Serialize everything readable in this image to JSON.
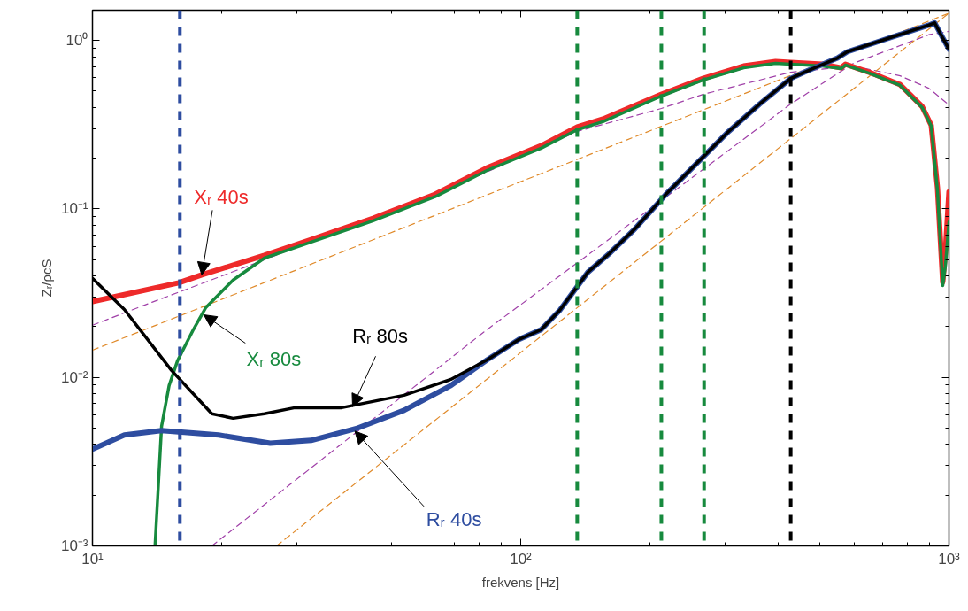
{
  "chart_data": {
    "type": "line",
    "xlabel": "frekvens [Hz]",
    "ylabel": "Zᵣ/ρcS",
    "log": "xy",
    "grid": false,
    "xlim": [
      10,
      1000
    ],
    "ylim": [
      0.001,
      1.51
    ],
    "xticks": [
      {
        "value": 10,
        "label": "10¹"
      },
      {
        "value": 100,
        "label": "10²"
      },
      {
        "value": 1000,
        "label": "10³"
      }
    ],
    "yticks": [
      {
        "value": 0.001,
        "label": "10⁻³"
      },
      {
        "value": 0.01,
        "label": "10⁻²"
      },
      {
        "value": 0.1,
        "label": "10⁻¹"
      },
      {
        "value": 1,
        "label": "10⁰"
      }
    ],
    "series": [
      {
        "color": "#a040a8",
        "line_style": "dashed",
        "x": [
          10,
          13.1,
          24.3,
          79.6,
          135.5,
          213,
          266.5,
          427,
          598,
          769,
          897,
          1000
        ],
        "values": [
          0.0204,
          0.0266,
          0.0481,
          0.157,
          0.288,
          0.394,
          0.478,
          0.647,
          0.704,
          0.616,
          0.52,
          0.414
        ]
      },
      {
        "color": "#a040a8",
        "line_style": "dashed",
        "x": [
          19.0,
          83.4,
          213,
          427,
          598,
          897,
          1000
        ],
        "values": [
          0.001,
          0.0192,
          0.112,
          0.419,
          0.73,
          1.08,
          1.13
        ]
      },
      {
        "color": "#e08a2a",
        "line_style": "dashed",
        "x": [
          10,
          1000
        ],
        "values": [
          0.0145,
          1.45
        ]
      },
      {
        "color": "#e08a2a",
        "line_style": "dashed",
        "x": [
          26.9,
          1000
        ],
        "values": [
          0.001,
          1.45
        ]
      },
      {
        "color": "#ee2a2a",
        "line_style": "solid",
        "x": [
          10,
          15.9,
          18.0,
          25.2,
          32.4,
          45.2,
          63.1,
          83.4,
          111.6,
          135.5,
          155.6,
          213,
          266.5,
          331.6,
          393.6,
          427,
          506,
          560,
          573,
          651,
          769,
          866,
          909,
          940,
          967,
          981,
          1000
        ],
        "values": [
          0.0282,
          0.0364,
          0.0406,
          0.053,
          0.0658,
          0.0879,
          0.122,
          0.175,
          0.237,
          0.306,
          0.341,
          0.478,
          0.594,
          0.704,
          0.748,
          0.739,
          0.722,
          0.687,
          0.722,
          0.647,
          0.546,
          0.404,
          0.313,
          0.133,
          0.0368,
          0.0562,
          0.126
        ]
      },
      {
        "color": "#178a3e",
        "line_style": "solid",
        "x": [
          14.0,
          14.5,
          15.1,
          15.8,
          17.2,
          18.4,
          21.3,
          25.2,
          32.4,
          45.2,
          63.1,
          83.4,
          111.6,
          135.5,
          155.6,
          213,
          266.5,
          331.6,
          393.6,
          427,
          506,
          560,
          573,
          651,
          769,
          866,
          909,
          940,
          967,
          981,
          1000
        ],
        "values": [
          0.001,
          0.00513,
          0.00895,
          0.01256,
          0.0192,
          0.026,
          0.0378,
          0.051,
          0.0635,
          0.0849,
          0.118,
          0.169,
          0.229,
          0.295,
          0.329,
          0.467,
          0.581,
          0.687,
          0.73,
          0.722,
          0.704,
          0.679,
          0.713,
          0.639,
          0.54,
          0.399,
          0.31,
          0.128,
          0.0351,
          0.0458,
          0.0838
        ]
      },
      {
        "color": "#2e4da0",
        "line_style": "solid",
        "x": [
          10,
          11.87,
          14.5,
          19.7,
          26.0,
          32.4,
          41.7,
          53.4,
          68.7,
          83.4,
          99.1,
          111.6,
          123.3,
          143.5,
          160.9,
          184.7,
          218.3,
          266.5,
          305.9,
          331.6,
          361.4,
          427,
          464.5,
          549,
          578.6,
          706,
          896.7,
          926,
          958,
          1000
        ],
        "values": [
          0.00375,
          0.00455,
          0.00483,
          0.00455,
          0.00407,
          0.00423,
          0.00501,
          0.00638,
          0.00895,
          0.0127,
          0.0168,
          0.0192,
          0.025,
          0.0421,
          0.0542,
          0.076,
          0.122,
          0.203,
          0.288,
          0.345,
          0.419,
          0.594,
          0.655,
          0.785,
          0.855,
          1.01,
          1.23,
          1.27,
          1.08,
          0.886
        ]
      },
      {
        "color": "#000000",
        "line_style": "solid",
        "x": [
          10,
          11.87,
          15.3,
          19.0,
          21.3,
          25.2,
          29.7,
          38.2,
          53.4,
          68.7,
          83.4,
          99.1,
          111.6,
          123.3,
          143.5,
          160.9,
          184.7,
          218.3,
          266.5,
          305.9,
          331.6,
          361.4,
          427,
          464.5,
          549,
          578.6,
          706,
          896.7,
          926,
          958,
          1000
        ],
        "values": [
          0.0387,
          0.0253,
          0.01099,
          0.00608,
          0.00572,
          0.00608,
          0.00661,
          0.00661,
          0.00783,
          0.00973,
          0.0127,
          0.0168,
          0.0192,
          0.025,
          0.0421,
          0.0542,
          0.076,
          0.122,
          0.203,
          0.288,
          0.345,
          0.419,
          0.594,
          0.655,
          0.785,
          0.855,
          1.01,
          1.23,
          1.27,
          1.08,
          0.886
        ]
      }
    ],
    "ref_lines": [
      {
        "axis": "x",
        "value": 16.0,
        "color": "#2e4da0",
        "line_style": "dashed"
      },
      {
        "axis": "x",
        "value": 135.5,
        "color": "#178a3e",
        "line_style": "dashed"
      },
      {
        "axis": "x",
        "value": 213,
        "color": "#178a3e",
        "line_style": "dashed"
      },
      {
        "axis": "x",
        "value": 268,
        "color": "#178a3e",
        "line_style": "dashed"
      },
      {
        "axis": "x",
        "value": 427,
        "color": "#000000",
        "line_style": "dashed"
      }
    ],
    "annotations": [
      {
        "text": "Xᵣ 40s",
        "x": 18.0,
        "y": 0.0406
      },
      {
        "text": "Xᵣ 80s",
        "x": 18.2,
        "y": 0.0235
      },
      {
        "text": "Rᵣ 80s",
        "x": 40.5,
        "y": 0.0067
      },
      {
        "text": "Rᵣ 40s",
        "x": 41.0,
        "y": 0.0048
      }
    ]
  }
}
